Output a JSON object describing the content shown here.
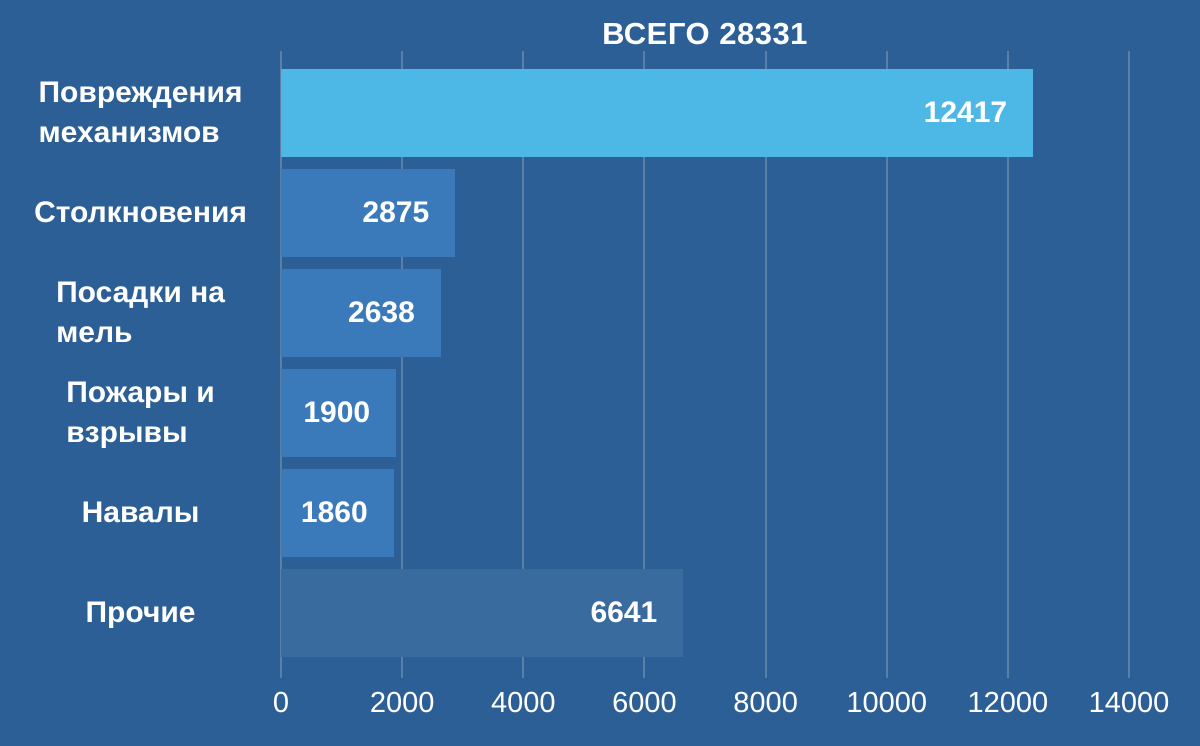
{
  "chart_data": {
    "type": "bar",
    "orientation": "horizontal",
    "title": "ВСЕГО 28331",
    "total": 28331,
    "categories": [
      "Повреждения механизмов",
      "Столкновения",
      "Посадки на мель",
      "Пожары и взрывы",
      "Навалы",
      "Прочие"
    ],
    "category_labels_wrapped": [
      "Повреждения\nмеханизмов",
      "Столкновения",
      "Посадки на\nмель",
      "Пожары и\nвзрывы",
      "Навалы",
      "Прочие"
    ],
    "values": [
      12417,
      2875,
      2638,
      1900,
      1860,
      6641
    ],
    "bar_colors": [
      "#4DB8E6",
      "#3A7ABB",
      "#3A7ABB",
      "#3A7ABB",
      "#3A7ABB",
      "#3A6B9E"
    ],
    "xlabel": "",
    "ylabel": "",
    "xlim": [
      0,
      14000
    ],
    "x_ticks": [
      0,
      2000,
      4000,
      6000,
      8000,
      10000,
      12000,
      14000
    ],
    "grid": true,
    "legend": false,
    "colors": {
      "background": "#2B5F95",
      "gridline": "#5B80A8",
      "text": "#FFFFFF"
    }
  }
}
